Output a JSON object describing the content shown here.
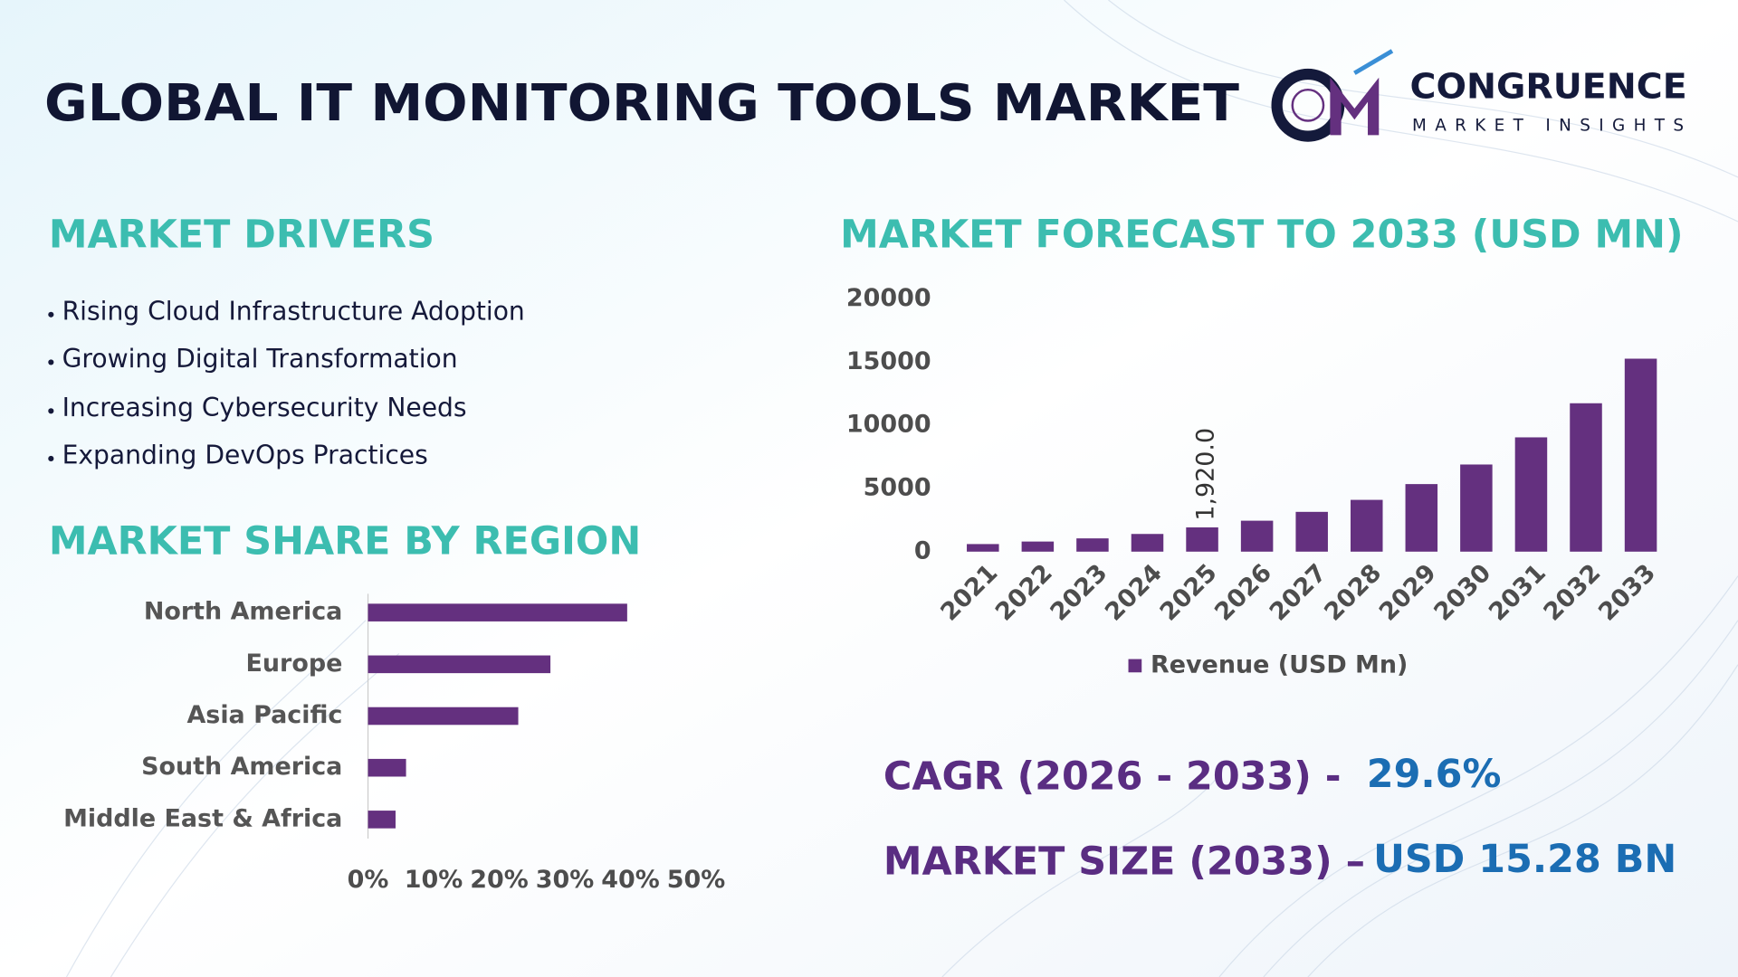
{
  "header": {
    "title": "GLOBAL IT MONITORING TOOLS MARKET",
    "logo_name": "CONGRUENCE",
    "logo_tagline": "MARKET INSIGHTS"
  },
  "drivers": {
    "title": "MARKET DRIVERS",
    "items": [
      "Rising Cloud Infrastructure Adoption",
      "Growing Digital Transformation",
      "Increasing Cybersecurity Needs",
      "Expanding DevOps Practices"
    ]
  },
  "highlights": {
    "cagr_label": "CAGR (2026 - 2033) -",
    "cagr_value": "29.6%",
    "size_label": "MARKET SIZE (2033) –",
    "size_value": "USD 15.28 BN"
  },
  "chart_data": [
    {
      "type": "hbar",
      "title": "MARKET SHARE BY REGION",
      "categories": [
        "North America",
        "Europe",
        "Asia Pacific",
        "South America",
        "Middle East & Africa"
      ],
      "values": [
        39.5,
        27.8,
        22.9,
        5.8,
        4.2
      ],
      "color": "#64307f",
      "xlim": [
        0,
        50
      ],
      "xticks": [
        {
          "value": 0,
          "label": "0%"
        },
        {
          "value": 10,
          "label": "10%"
        },
        {
          "value": 20,
          "label": "20%"
        },
        {
          "value": 30,
          "label": "30%"
        },
        {
          "value": 40,
          "label": "40%"
        },
        {
          "value": 50,
          "label": "50%"
        }
      ]
    },
    {
      "type": "bar",
      "title": "MARKET FORECAST TO 2033 (USD MN)",
      "categories": [
        "2021",
        "2022",
        "2023",
        "2024",
        "2025",
        "2026",
        "2027",
        "2028",
        "2029",
        "2030",
        "2031",
        "2032",
        "2033"
      ],
      "series": [
        {
          "name": "Revenue (USD Mn)",
          "color": "#64307f",
          "values": [
            600,
            800,
            1050,
            1400,
            1920,
            2450,
            3150,
            4100,
            5350,
            6900,
            9050,
            11750,
            15280
          ],
          "value_labels": [
            null,
            null,
            null,
            null,
            "1,920.0",
            null,
            null,
            null,
            null,
            null,
            null,
            null,
            null
          ]
        }
      ],
      "ylim": [
        0,
        20000
      ],
      "yticks": [
        0,
        5000,
        10000,
        15000,
        20000
      ],
      "grid": false,
      "legend": "bottom"
    }
  ]
}
